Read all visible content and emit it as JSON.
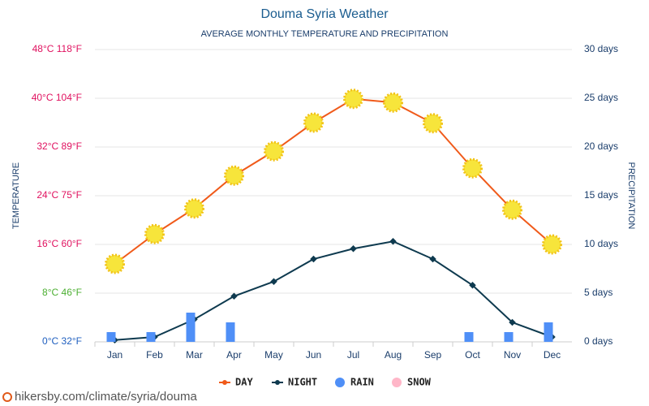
{
  "chart_data": {
    "type": "line-bar",
    "title": "Douma Syria Weather",
    "subtitle": "AVERAGE MONTHLY TEMPERATURE AND PRECIPITATION",
    "y_label": "TEMPERATURE",
    "y2_label": "PRECIPITATION",
    "categories": [
      "Jan",
      "Feb",
      "Mar",
      "Apr",
      "May",
      "Jun",
      "Jul",
      "Aug",
      "Sep",
      "Oct",
      "Nov",
      "Dec"
    ],
    "series": [
      {
        "name": "DAY",
        "type": "line",
        "color": "#f05a1a",
        "values": [
          12.8,
          17.7,
          21.9,
          27.3,
          31.3,
          36,
          39.9,
          39.3,
          35.9,
          28.5,
          21.7,
          16
        ]
      },
      {
        "name": "NIGHT",
        "type": "line",
        "color": "#0e3a4f",
        "values": [
          0.3,
          0.8,
          3.7,
          7.5,
          9.9,
          13.6,
          15.3,
          16.5,
          13.6,
          9.3,
          3.2,
          0.8
        ]
      },
      {
        "name": "RAIN",
        "type": "bar",
        "axis": "y2",
        "color": "#4f8ff7",
        "values": [
          1,
          1,
          3,
          2,
          0,
          0,
          0,
          0,
          0,
          1,
          1,
          2
        ]
      },
      {
        "name": "SNOW",
        "type": "bar",
        "axis": "y2",
        "color": "#ffb6c8",
        "values": [
          0,
          0,
          0,
          0,
          0,
          0,
          0,
          0,
          0,
          0,
          0,
          0
        ]
      }
    ],
    "ylim": [
      0,
      48
    ],
    "yticks": [
      {
        "value": 0,
        "label": "0°C 32°F",
        "color": "#1f5fbf"
      },
      {
        "value": 8,
        "label": "8°C 46°F",
        "color": "#4caf32"
      },
      {
        "value": 16,
        "label": "16°C 60°F",
        "color": "#e0115f"
      },
      {
        "value": 24,
        "label": "24°C 75°F",
        "color": "#e0115f"
      },
      {
        "value": 32,
        "label": "32°C 89°F",
        "color": "#e0115f"
      },
      {
        "value": 40,
        "label": "40°C 104°F",
        "color": "#e0115f"
      },
      {
        "value": 48,
        "label": "48°C 118°F",
        "color": "#e0115f"
      }
    ],
    "y2lim": [
      0,
      30
    ],
    "y2ticks": [
      {
        "value": 0,
        "label": "0 days"
      },
      {
        "value": 5,
        "label": "5 days"
      },
      {
        "value": 10,
        "label": "10 days"
      },
      {
        "value": 15,
        "label": "15 days"
      },
      {
        "value": 20,
        "label": "20 days"
      },
      {
        "value": 25,
        "label": "25 days"
      },
      {
        "value": 30,
        "label": "30 days"
      }
    ],
    "grid": true,
    "legend": "bottom",
    "footer": "hikersby.com/climate/syria/douma"
  }
}
